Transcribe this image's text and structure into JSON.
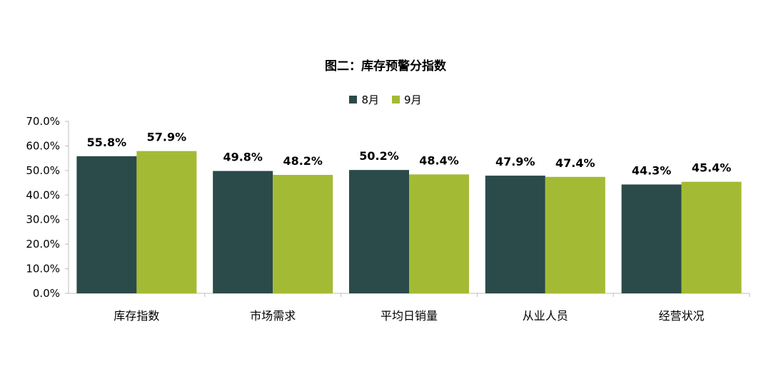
{
  "chart_data": {
    "type": "bar",
    "title": "图二：库存预警分指数",
    "categories": [
      "库存指数",
      "市场需求",
      "平均日销量",
      "从业人员",
      "经营状况"
    ],
    "series": [
      {
        "name": "8月",
        "color": "#2b4a4a",
        "values": [
          55.8,
          49.8,
          50.2,
          47.9,
          44.3
        ],
        "labels": [
          "55.8%",
          "49.8%",
          "50.2%",
          "47.9%",
          "44.3%"
        ]
      },
      {
        "name": "9月",
        "color": "#a3bb34",
        "values": [
          57.9,
          48.2,
          48.4,
          47.4,
          45.4
        ],
        "labels": [
          "57.9%",
          "48.2%",
          "48.4%",
          "47.4%",
          "45.4%"
        ]
      }
    ],
    "y_ticks": [
      "0.0%",
      "10.0%",
      "20.0%",
      "30.0%",
      "40.0%",
      "50.0%",
      "60.0%",
      "70.0%"
    ],
    "ylim": [
      0,
      70
    ],
    "grid": false,
    "legend_position": "top-center"
  }
}
